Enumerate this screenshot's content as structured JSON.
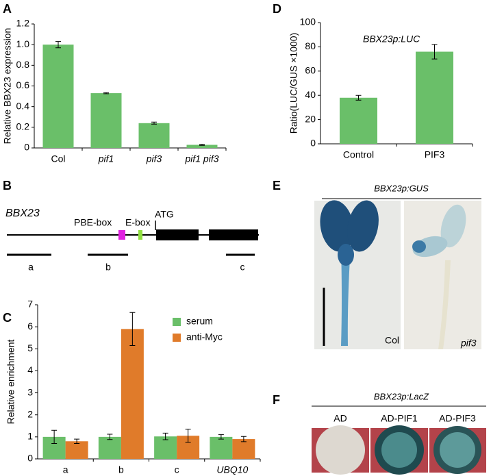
{
  "chart_data": [
    {
      "type": "bar",
      "panel_label": "A",
      "ylabel": "Relative BBX23 expression",
      "categories": [
        "Col",
        "pif1",
        "pif3",
        "pif1 pif3"
      ],
      "category_italic": [
        false,
        true,
        true,
        true
      ],
      "values": [
        1.0,
        0.53,
        0.24,
        0.03
      ],
      "errors": [
        0.03,
        0.005,
        0.01,
        0.005
      ],
      "color": "#6abf69",
      "ylim": [
        0,
        1.2
      ],
      "yticks": [
        0,
        0.2,
        0.4,
        0.6,
        0.8,
        {
          "value": 1,
          "label": "1.0"
        },
        1.2
      ]
    },
    {
      "type": "bar",
      "panel_label": "D",
      "ylabel": "Ratio(LUC/GUS ×1000)",
      "annotation": "BBX23p:LUC",
      "categories": [
        "Control",
        "PIF3"
      ],
      "category_italic": [
        false,
        false
      ],
      "values": [
        38,
        76
      ],
      "errors": [
        2,
        6
      ],
      "color": "#6abf69",
      "ylim": [
        0,
        100
      ],
      "yticks": [
        0,
        20,
        40,
        60,
        80,
        100
      ]
    },
    {
      "type": "grouped_bar",
      "panel_label": "C",
      "ylabel": "Relative enrichment",
      "categories": [
        "a",
        "b",
        "c",
        "UBQ10"
      ],
      "category_italic": [
        false,
        false,
        false,
        true
      ],
      "series": [
        {
          "name": "serum",
          "color": "#6abf69",
          "values": [
            1.0,
            1.0,
            1.02,
            1.0
          ],
          "errors": [
            0.3,
            0.12,
            0.15,
            0.1
          ]
        },
        {
          "name": "anti-Myc",
          "color": "#e07b2a",
          "values": [
            0.8,
            5.9,
            1.05,
            0.9
          ],
          "errors": [
            0.1,
            0.75,
            0.3,
            0.12
          ]
        }
      ],
      "ylim": [
        0,
        7
      ],
      "yticks": [
        0,
        1,
        2,
        3,
        4,
        5,
        6,
        7
      ]
    }
  ],
  "gene_diagram": {
    "panel_label": "B",
    "gene": "BBX23",
    "pbe_box": "PBE-box",
    "e_box": "E-box",
    "atg": "ATG",
    "regions": [
      "a",
      "b",
      "c"
    ]
  },
  "gus_staining": {
    "panel_label": "E",
    "title": "BBX23p:GUS",
    "left": "Col",
    "right": "pif3"
  },
  "yeast_assay": {
    "panel_label": "F",
    "title": "BBX23p:LacZ",
    "columns": [
      "AD",
      "AD-PIF1",
      "AD-PIF3"
    ]
  }
}
